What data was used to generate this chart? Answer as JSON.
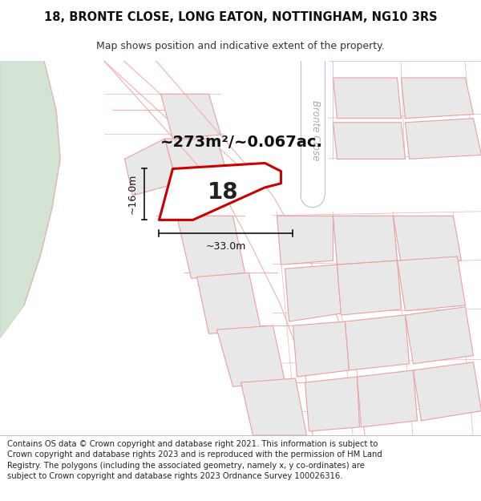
{
  "title_line1": "18, BRONTE CLOSE, LONG EATON, NOTTINGHAM, NG10 3RS",
  "title_line2": "Map shows position and indicative extent of the property.",
  "footer_text": "Contains OS data © Crown copyright and database right 2021. This information is subject to Crown copyright and database rights 2023 and is reproduced with the permission of HM Land Registry. The polygons (including the associated geometry, namely x, y co-ordinates) are subject to Crown copyright and database rights 2023 Ordnance Survey 100026316.",
  "map_bg": "#ffffff",
  "plot_bg": "#ffffff",
  "block_fill": "#e8e8e8",
  "block_edge": "#e8a0a0",
  "road_line": "#f0b0b0",
  "green_fill": "#d4e4d4",
  "green_edge": "#c0d8c0",
  "highlight_color": "#cc0000",
  "highlight_fill": "#ffffff",
  "cul_de_sac_fill": "#f0f0f0",
  "cul_de_sac_edge": "#c0c0c0",
  "area_text": "~273m²/~0.067ac.",
  "number_text": "18",
  "dim_h": "~16.0m",
  "dim_w": "~33.0m",
  "bronte_close_label": "Bronte Close",
  "title_fontsize": 10.5,
  "subtitle_fontsize": 9,
  "footer_fontsize": 7.2,
  "area_fontsize": 14,
  "number_fontsize": 20,
  "dim_fontsize": 9
}
